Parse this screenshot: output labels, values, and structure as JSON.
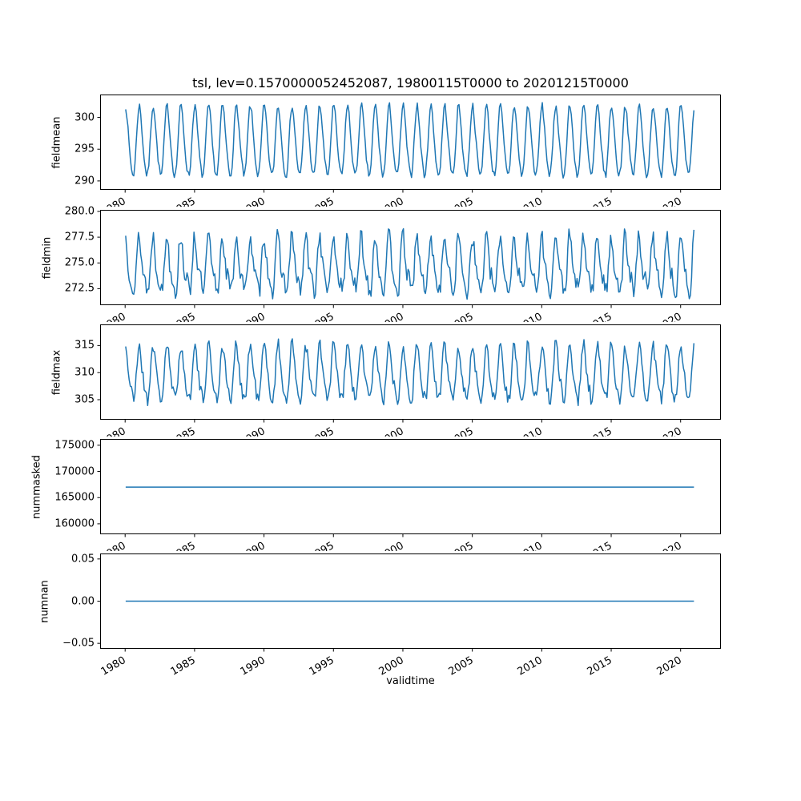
{
  "figure": {
    "title": "tsl, lev=0.1570000052452087, 19800115T0000 to 20201215T0000",
    "xlabel": "validtime",
    "background": "#ffffff",
    "line_color": "#1f77b4",
    "axis_color": "#000000"
  },
  "xticks": {
    "values": [
      1980,
      1985,
      1990,
      1995,
      2000,
      2005,
      2010,
      2015,
      2020
    ],
    "labels": [
      "1980",
      "1985",
      "1990",
      "1995",
      "2000",
      "2005",
      "2010",
      "2015",
      "2020"
    ],
    "rotation_deg": 30
  },
  "chart_data": [
    {
      "type": "line",
      "ylabel": "fieldmean",
      "ytick_values": [
        290,
        295,
        300
      ],
      "ytick_labels": [
        "290",
        "295",
        "300"
      ],
      "ylim": [
        288.6,
        303.6
      ],
      "xlim": [
        1978.2,
        2022.9
      ],
      "x_start": 1980.04,
      "x_end": 2020.96,
      "points_per_year": 12,
      "series": {
        "kind": "seasonal",
        "base": 296.0,
        "amplitude": 5.4,
        "harmonic2": 0.12,
        "noise": 0.55,
        "seed": 7
      }
    },
    {
      "type": "line",
      "ylabel": "fieldmin",
      "ytick_values": [
        272.5,
        275.0,
        277.5,
        280.0
      ],
      "ytick_labels": [
        "272.5",
        "275.0",
        "277.5",
        "280.0"
      ],
      "ylim": [
        270.9,
        280.15
      ],
      "xlim": [
        1978.2,
        2022.9
      ],
      "x_start": 1980.04,
      "x_end": 2020.96,
      "points_per_year": 12,
      "series": {
        "kind": "seasonal",
        "base": 274.6,
        "amplitude": 2.4,
        "harmonic2": 0.35,
        "noise": 0.85,
        "seed": 13
      }
    },
    {
      "type": "line",
      "ylabel": "fieldmax",
      "ytick_values": [
        305,
        310,
        315
      ],
      "ytick_labels": [
        "305",
        "310",
        "315"
      ],
      "ylim": [
        301.3,
        318.9
      ],
      "xlim": [
        1978.2,
        2022.9
      ],
      "x_start": 1980.04,
      "x_end": 2020.96,
      "points_per_year": 12,
      "series": {
        "kind": "seasonal",
        "base": 309.6,
        "amplitude": 4.8,
        "harmonic2": 0.2,
        "noise": 1.3,
        "seed": 21
      }
    },
    {
      "type": "line",
      "ylabel": "nummasked",
      "ytick_values": [
        160000,
        165000,
        170000,
        175000
      ],
      "ytick_labels": [
        "160000",
        "165000",
        "170000",
        "175000"
      ],
      "ylim": [
        158000,
        176200
      ],
      "xlim": [
        1978.2,
        2022.9
      ],
      "x_start": 1980.04,
      "x_end": 2020.96,
      "points_per_year": 12,
      "series": {
        "kind": "constant",
        "value": 167000
      }
    },
    {
      "type": "line",
      "ylabel": "numnan",
      "ytick_values": [
        -0.05,
        0.0,
        0.05
      ],
      "ytick_labels": [
        "−0.05",
        "0.00",
        "0.05"
      ],
      "ylim": [
        -0.0565,
        0.0565
      ],
      "xlim": [
        1978.2,
        2022.9
      ],
      "x_start": 1980.04,
      "x_end": 2020.96,
      "points_per_year": 12,
      "series": {
        "kind": "constant",
        "value": 0.0
      }
    }
  ]
}
